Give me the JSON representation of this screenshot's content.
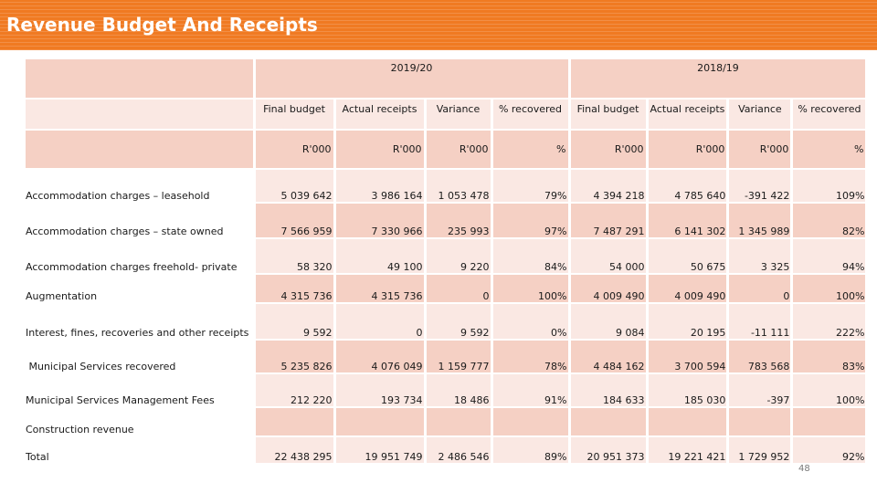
{
  "slide": {
    "title": "Revenue Budget And Receipts",
    "page_number": "48"
  },
  "table": {
    "year_headers": [
      "2019/20",
      "2018/19"
    ],
    "column_headers": [
      "Final budget",
      "Actual receipts",
      "Variance",
      "% recovered",
      "Final budget",
      "Actual receipts",
      "Variance",
      "% recovered"
    ],
    "units": [
      "R'000",
      "R'000",
      "R'000",
      "%",
      "R'000",
      "R'000",
      "R'000",
      "%"
    ],
    "rows": [
      {
        "label": "Accommodation charges – leasehold",
        "values": [
          "5 039 642",
          "3 986 164",
          "1 053 478",
          "79%",
          "4 394 218",
          "4 785 640",
          "-391 422",
          "109%"
        ]
      },
      {
        "label": "Accommodation charges – state owned",
        "values": [
          "7 566 959",
          "7 330 966",
          "235 993",
          "97%",
          "7 487 291",
          "6 141 302",
          "1 345 989",
          "82%"
        ]
      },
      {
        "label": "Accommodation charges freehold- private",
        "values": [
          "58 320",
          "49 100",
          "9 220",
          "84%",
          "54 000",
          "50 675",
          "3 325",
          "94%"
        ]
      },
      {
        "label": "Augmentation",
        "values": [
          "4 315 736",
          "4 315 736",
          "0",
          "100%",
          "4 009 490",
          "4 009 490",
          "0",
          "100%"
        ]
      },
      {
        "label": "Interest, fines, recoveries and other receipts",
        "values": [
          "9 592",
          "0",
          "9 592",
          "0%",
          "9 084",
          "20 195",
          "-11 111",
          "222%"
        ]
      },
      {
        "label": " Municipal Services recovered",
        "values": [
          "5 235 826",
          "4 076 049",
          "1 159 777",
          "78%",
          "4 484 162",
          "3 700 594",
          "783 568",
          "83%"
        ]
      },
      {
        "label": "Municipal Services Management Fees",
        "values": [
          "212 220",
          "193 734",
          "18 486",
          "91%",
          "184 633",
          "185 030",
          "-397",
          "100%"
        ]
      },
      {
        "label": "Construction revenue",
        "values": [
          "",
          "",
          "",
          "",
          "",
          "",
          "",
          ""
        ]
      },
      {
        "label": "Total",
        "values": [
          "22 438 295",
          "19 951 749",
          "2 486 546",
          "89%",
          "20 951 373",
          "19 221 421",
          "1 729 952",
          "92%"
        ]
      }
    ]
  },
  "colors": {
    "title_bar": "#f07a22",
    "row_dark": "#f5d0c4",
    "row_light": "#fae8e3"
  }
}
